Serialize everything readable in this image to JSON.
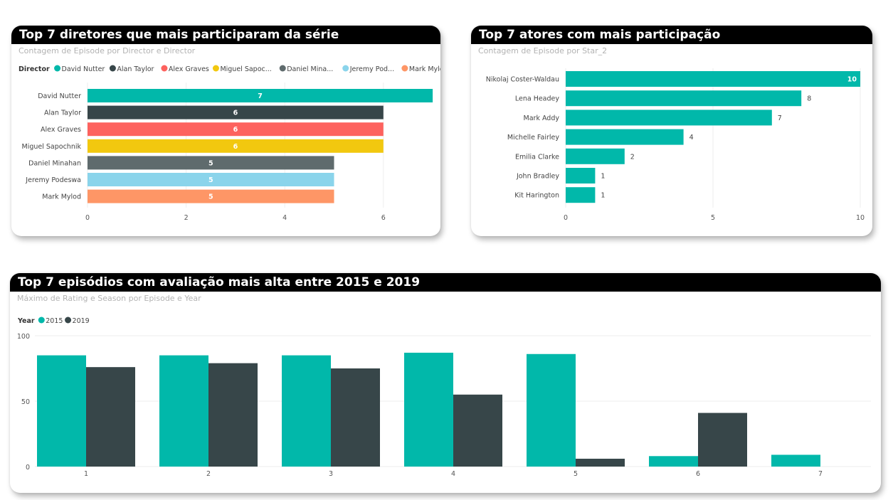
{
  "colors": {
    "teal": "#01B8AA",
    "dark": "#374649",
    "red": "#FD625E",
    "yellow": "#F2C80F",
    "gray": "#5F6B6D",
    "lightblue": "#8AD4EB",
    "orange": "#FE9666"
  },
  "panels": {
    "directors": {
      "title": "Top 7 diretores que mais participaram da série",
      "subtitle": "Contagem de Episode por Director e Director"
    },
    "actors": {
      "title": "Top 7 atores com mais participação",
      "subtitle": "Contagem de Episode por Star_2"
    },
    "episodes": {
      "title": "Top 7 episódios com avaliação mais alta entre 2015 e 2019",
      "subtitle": "Máximo de Rating e Season por Episode e Year"
    }
  },
  "chart_data": [
    {
      "type": "bar",
      "orientation": "horizontal",
      "legend_title": "Director",
      "legend": [
        "David Nutter",
        "Alan Taylor",
        "Alex Graves",
        "Miguel Sapoc...",
        "Daniel Mina...",
        "Jeremy Pod...",
        "Mark Mylod"
      ],
      "categories": [
        "David Nutter",
        "Alan Taylor",
        "Alex Graves",
        "Miguel Sapochnik",
        "Daniel Minahan",
        "Jeremy Podeswa",
        "Mark Mylod"
      ],
      "values": [
        7,
        6,
        6,
        6,
        5,
        5,
        5
      ],
      "colors": [
        "#01B8AA",
        "#374649",
        "#FD625E",
        "#F2C80F",
        "#5F6B6D",
        "#8AD4EB",
        "#FE9666"
      ],
      "xlim": [
        0,
        7
      ],
      "xticks": [
        0,
        2,
        4,
        6
      ],
      "grid": true
    },
    {
      "type": "bar",
      "orientation": "horizontal",
      "categories": [
        "Nikolaj Coster-Waldau",
        "Lena Headey",
        "Mark Addy",
        "Michelle Fairley",
        "Emilia Clarke",
        "John Bradley",
        "Kit Harington"
      ],
      "values": [
        10,
        8,
        7,
        4,
        2,
        1,
        1
      ],
      "color": "#01B8AA",
      "xlim": [
        0,
        10
      ],
      "xticks": [
        0,
        5,
        10
      ],
      "grid": true
    },
    {
      "type": "bar",
      "orientation": "vertical",
      "legend_title": "Year",
      "categories": [
        "1",
        "2",
        "3",
        "4",
        "5",
        "6",
        "7"
      ],
      "series": [
        {
          "name": "2015",
          "color": "#01B8AA",
          "values": [
            85,
            85,
            85,
            87,
            86,
            8,
            9
          ]
        },
        {
          "name": "2019",
          "color": "#374649",
          "values": [
            76,
            79,
            75,
            55,
            6,
            41,
            null
          ]
        }
      ],
      "ylim": [
        0,
        100
      ],
      "yticks": [
        0,
        50,
        100
      ],
      "grid": true
    }
  ]
}
